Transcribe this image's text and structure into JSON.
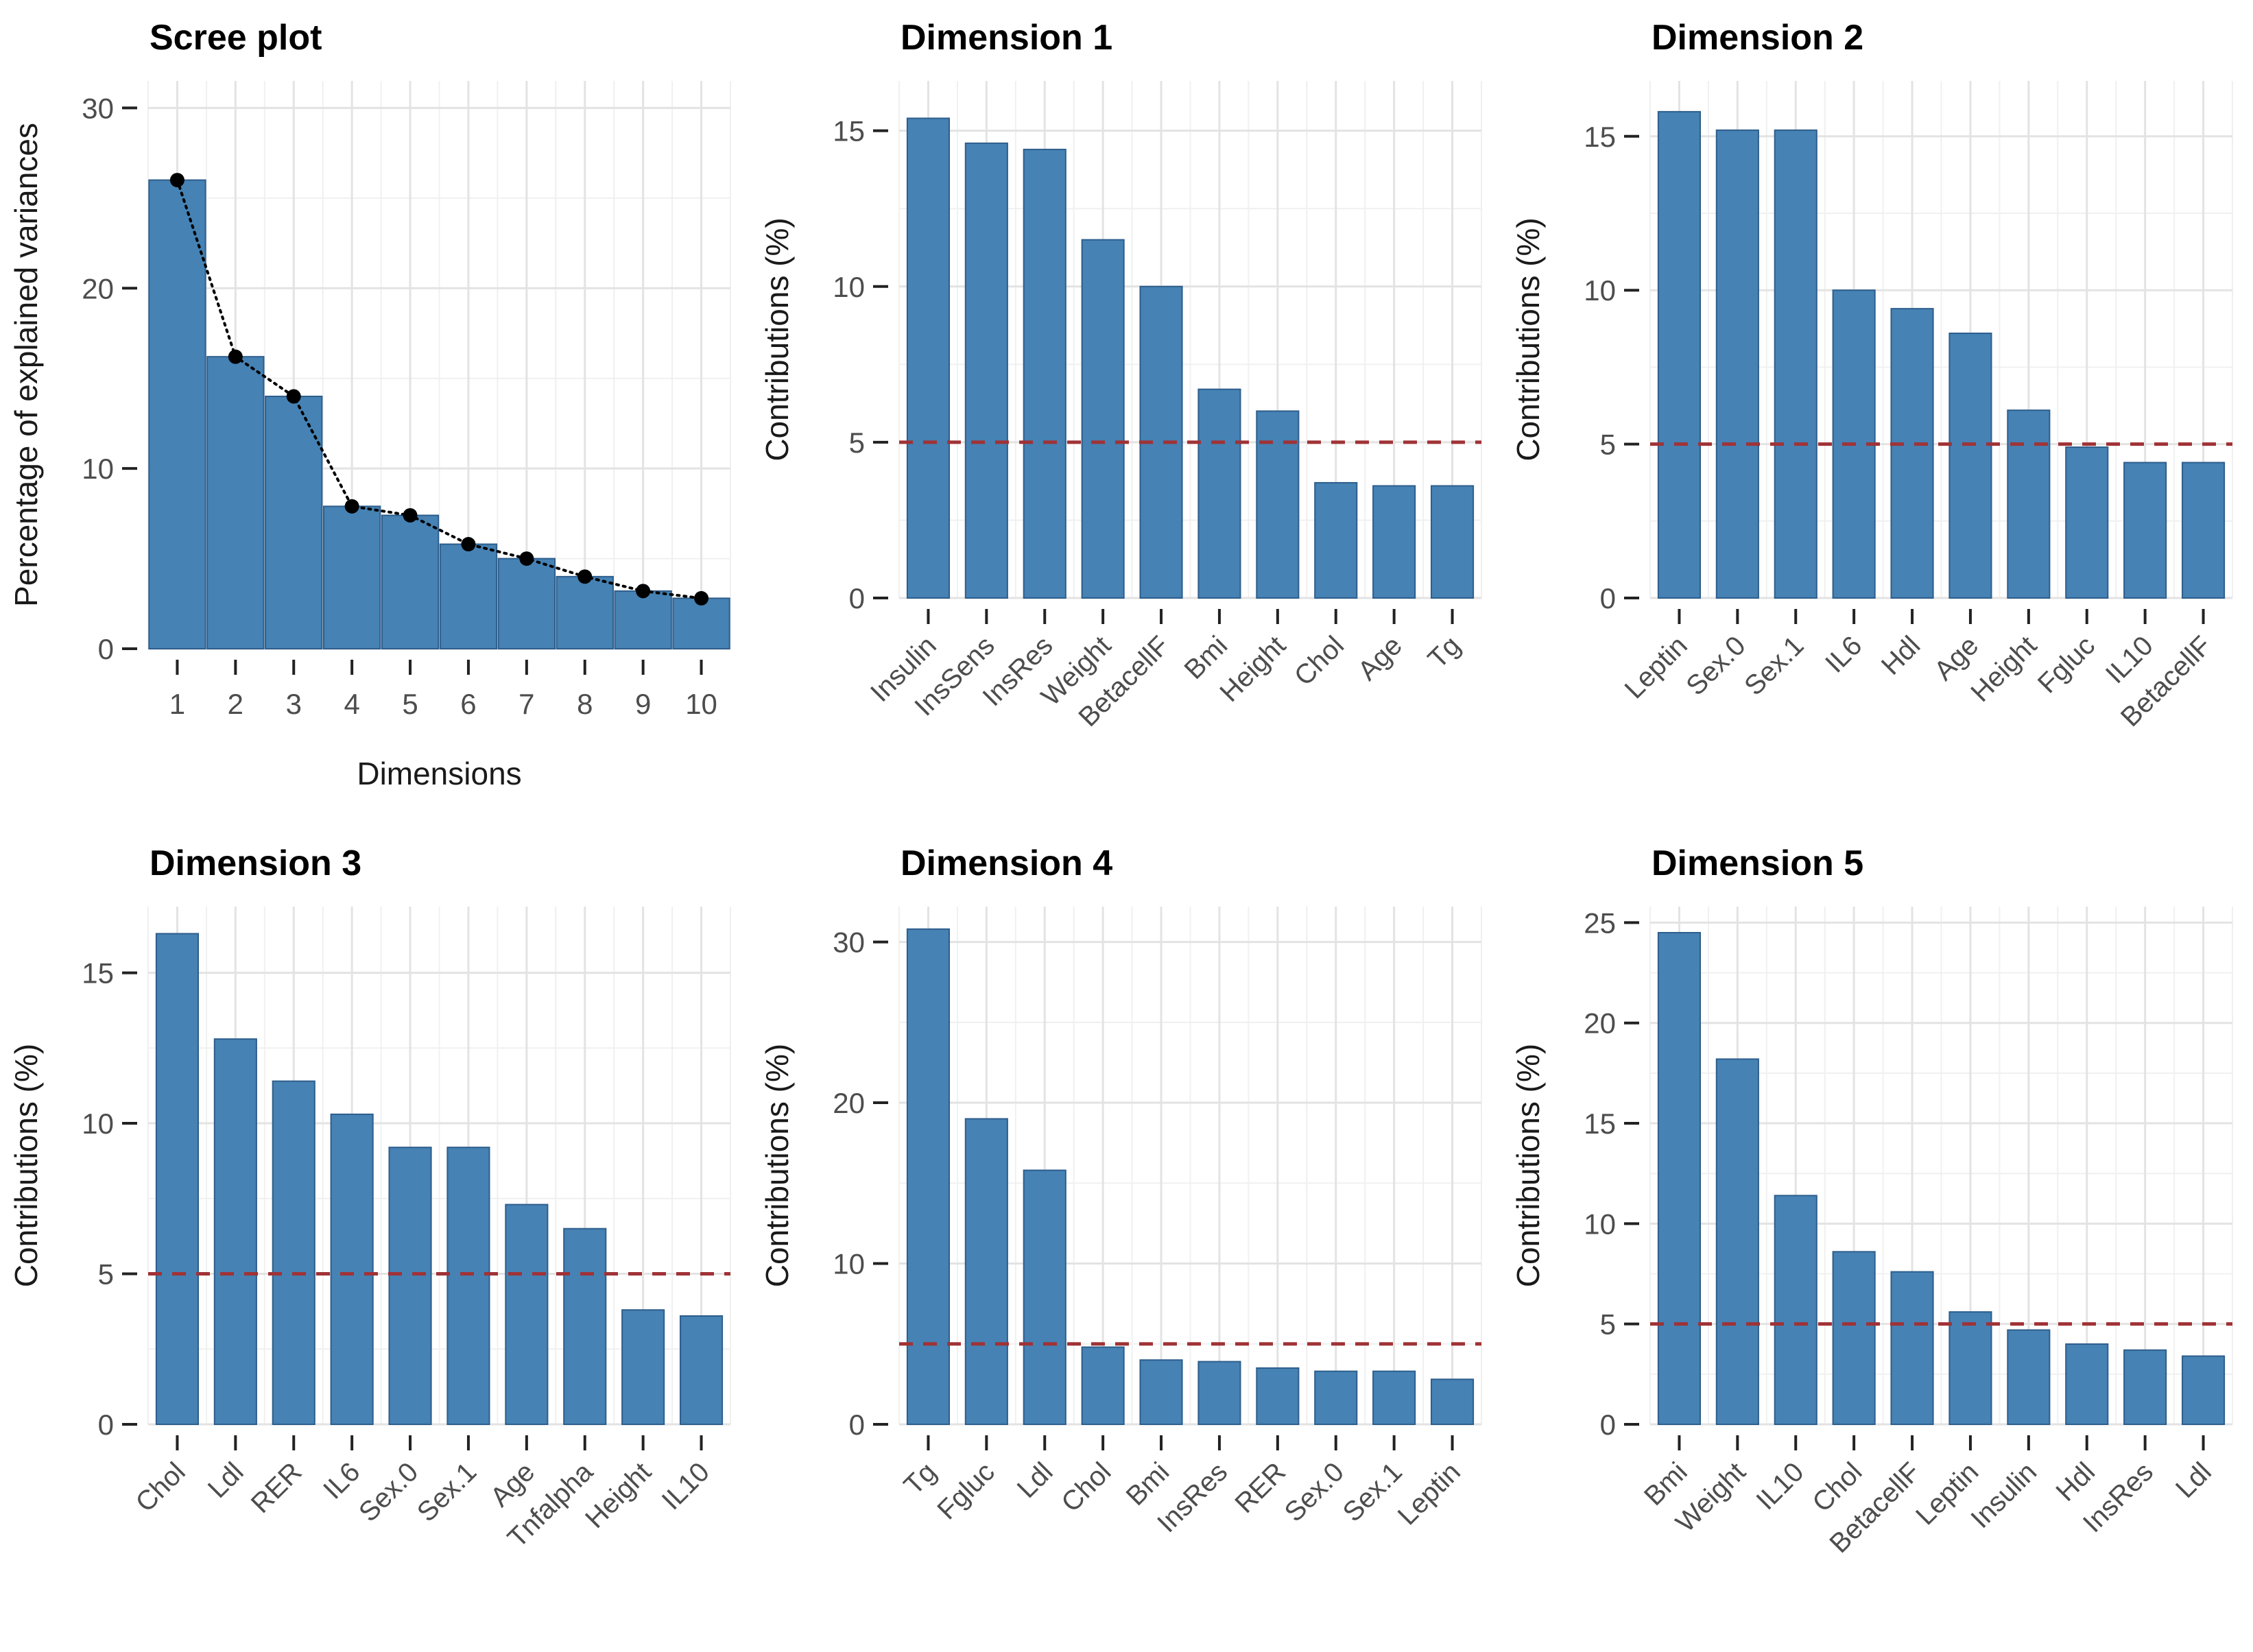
{
  "page": {
    "background": "#FFFFFF"
  },
  "colors": {
    "bar_fill": "#4682B4",
    "bar_stroke": "#2E5E8C",
    "threshold_line": "#A03236",
    "scree_line": "#000000",
    "point_fill": "#000000",
    "grid_major": "#E3E3E3",
    "grid_minor": "#F0F0F0",
    "tick_label": "#4D4D4D",
    "axis_title": "#1A1A1A",
    "title": "#000000",
    "tick_mark": "#222222"
  },
  "chart_data": [
    {
      "id": "scree",
      "type": "bar",
      "title": "Scree plot",
      "ylabel": "Percentage of explained variances",
      "xlabel": "Dimensions",
      "categories": [
        "1",
        "2",
        "3",
        "4",
        "5",
        "6",
        "7",
        "8",
        "9",
        "10"
      ],
      "values": [
        26.0,
        16.2,
        14.0,
        7.9,
        7.4,
        5.8,
        5.0,
        4.0,
        3.2,
        2.8
      ],
      "yticks": [
        0,
        10,
        20,
        30
      ],
      "ylim": [
        0,
        31.5
      ],
      "threshold": null,
      "rotated_labels": false,
      "line_overlay": true,
      "grid": true,
      "legend": "none"
    },
    {
      "id": "dim1",
      "type": "bar",
      "title": "Dimension 1",
      "ylabel": "Contributions (%)",
      "xlabel": "",
      "categories": [
        "Insulin",
        "InsSens",
        "InsRes",
        "Weight",
        "BetacellF",
        "Bmi",
        "Height",
        "Chol",
        "Age",
        "Tg"
      ],
      "values": [
        15.4,
        14.6,
        14.4,
        11.5,
        10.0,
        6.7,
        6.0,
        3.7,
        3.6,
        3.6
      ],
      "yticks": [
        0,
        5,
        10,
        15
      ],
      "ylim": [
        0,
        16.6
      ],
      "threshold": 5,
      "rotated_labels": true,
      "line_overlay": false,
      "grid": true,
      "legend": "none"
    },
    {
      "id": "dim2",
      "type": "bar",
      "title": "Dimension 2",
      "ylabel": "Contributions (%)",
      "xlabel": "",
      "categories": [
        "Leptin",
        "Sex.0",
        "Sex.1",
        "IL6",
        "Hdl",
        "Age",
        "Height",
        "Fgluc",
        "IL10",
        "BetacellF"
      ],
      "values": [
        15.8,
        15.2,
        15.2,
        10.0,
        9.4,
        8.6,
        6.1,
        4.9,
        4.4,
        4.4
      ],
      "yticks": [
        0,
        5,
        10,
        15
      ],
      "ylim": [
        0,
        16.8
      ],
      "threshold": 5,
      "rotated_labels": true,
      "line_overlay": false,
      "grid": true,
      "legend": "none"
    },
    {
      "id": "dim3",
      "type": "bar",
      "title": "Dimension 3",
      "ylabel": "Contributions (%)",
      "xlabel": "",
      "categories": [
        "Chol",
        "Ldl",
        "RER",
        "IL6",
        "Sex.0",
        "Sex.1",
        "Age",
        "Tnfalpha",
        "Height",
        "IL10"
      ],
      "values": [
        16.3,
        12.8,
        11.4,
        10.3,
        9.2,
        9.2,
        7.3,
        6.5,
        3.8,
        3.6
      ],
      "yticks": [
        0,
        5,
        10,
        15
      ],
      "ylim": [
        0,
        17.2
      ],
      "threshold": 5,
      "rotated_labels": true,
      "line_overlay": false,
      "grid": true,
      "legend": "none"
    },
    {
      "id": "dim4",
      "type": "bar",
      "title": "Dimension 4",
      "ylabel": "Contributions (%)",
      "xlabel": "",
      "categories": [
        "Tg",
        "Fgluc",
        "Ldl",
        "Chol",
        "Bmi",
        "InsRes",
        "RER",
        "Sex.0",
        "Sex.1",
        "Leptin"
      ],
      "values": [
        30.8,
        19.0,
        15.8,
        4.8,
        4.0,
        3.9,
        3.5,
        3.3,
        3.3,
        2.8
      ],
      "yticks": [
        0,
        10,
        20,
        30
      ],
      "ylim": [
        0,
        32.2
      ],
      "threshold": 5,
      "rotated_labels": true,
      "line_overlay": false,
      "grid": true,
      "legend": "none"
    },
    {
      "id": "dim5",
      "type": "bar",
      "title": "Dimension 5",
      "ylabel": "Contributions (%)",
      "xlabel": "",
      "categories": [
        "Bmi",
        "Weight",
        "IL10",
        "Chol",
        "BetacellF",
        "Leptin",
        "Insulin",
        "Hdl",
        "InsRes",
        "Ldl"
      ],
      "values": [
        24.5,
        18.2,
        11.4,
        8.6,
        7.6,
        5.6,
        4.7,
        4.0,
        3.7,
        3.4
      ],
      "yticks": [
        0,
        5,
        10,
        15,
        20,
        25
      ],
      "ylim": [
        0,
        25.8
      ],
      "threshold": 5,
      "rotated_labels": true,
      "line_overlay": false,
      "grid": true,
      "legend": "none"
    }
  ]
}
